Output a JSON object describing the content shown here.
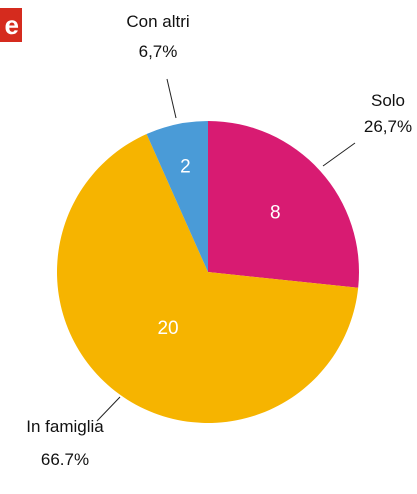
{
  "brand": {
    "badge_text": "e",
    "badge_color": "#d52b1e"
  },
  "chart_data": {
    "type": "pie",
    "start_angle_deg": 0,
    "direction": "clockwise",
    "slices": [
      {
        "label": "Solo",
        "value": 8,
        "percent_label": "26,7%",
        "color": "#d81b72"
      },
      {
        "label": "In famiglia",
        "value": 20,
        "percent_label": "66.7%",
        "color": "#f6b400"
      },
      {
        "label": "Con altri",
        "value": 2,
        "percent_label": "6,7%",
        "color": "#4a9bd7"
      }
    ]
  }
}
